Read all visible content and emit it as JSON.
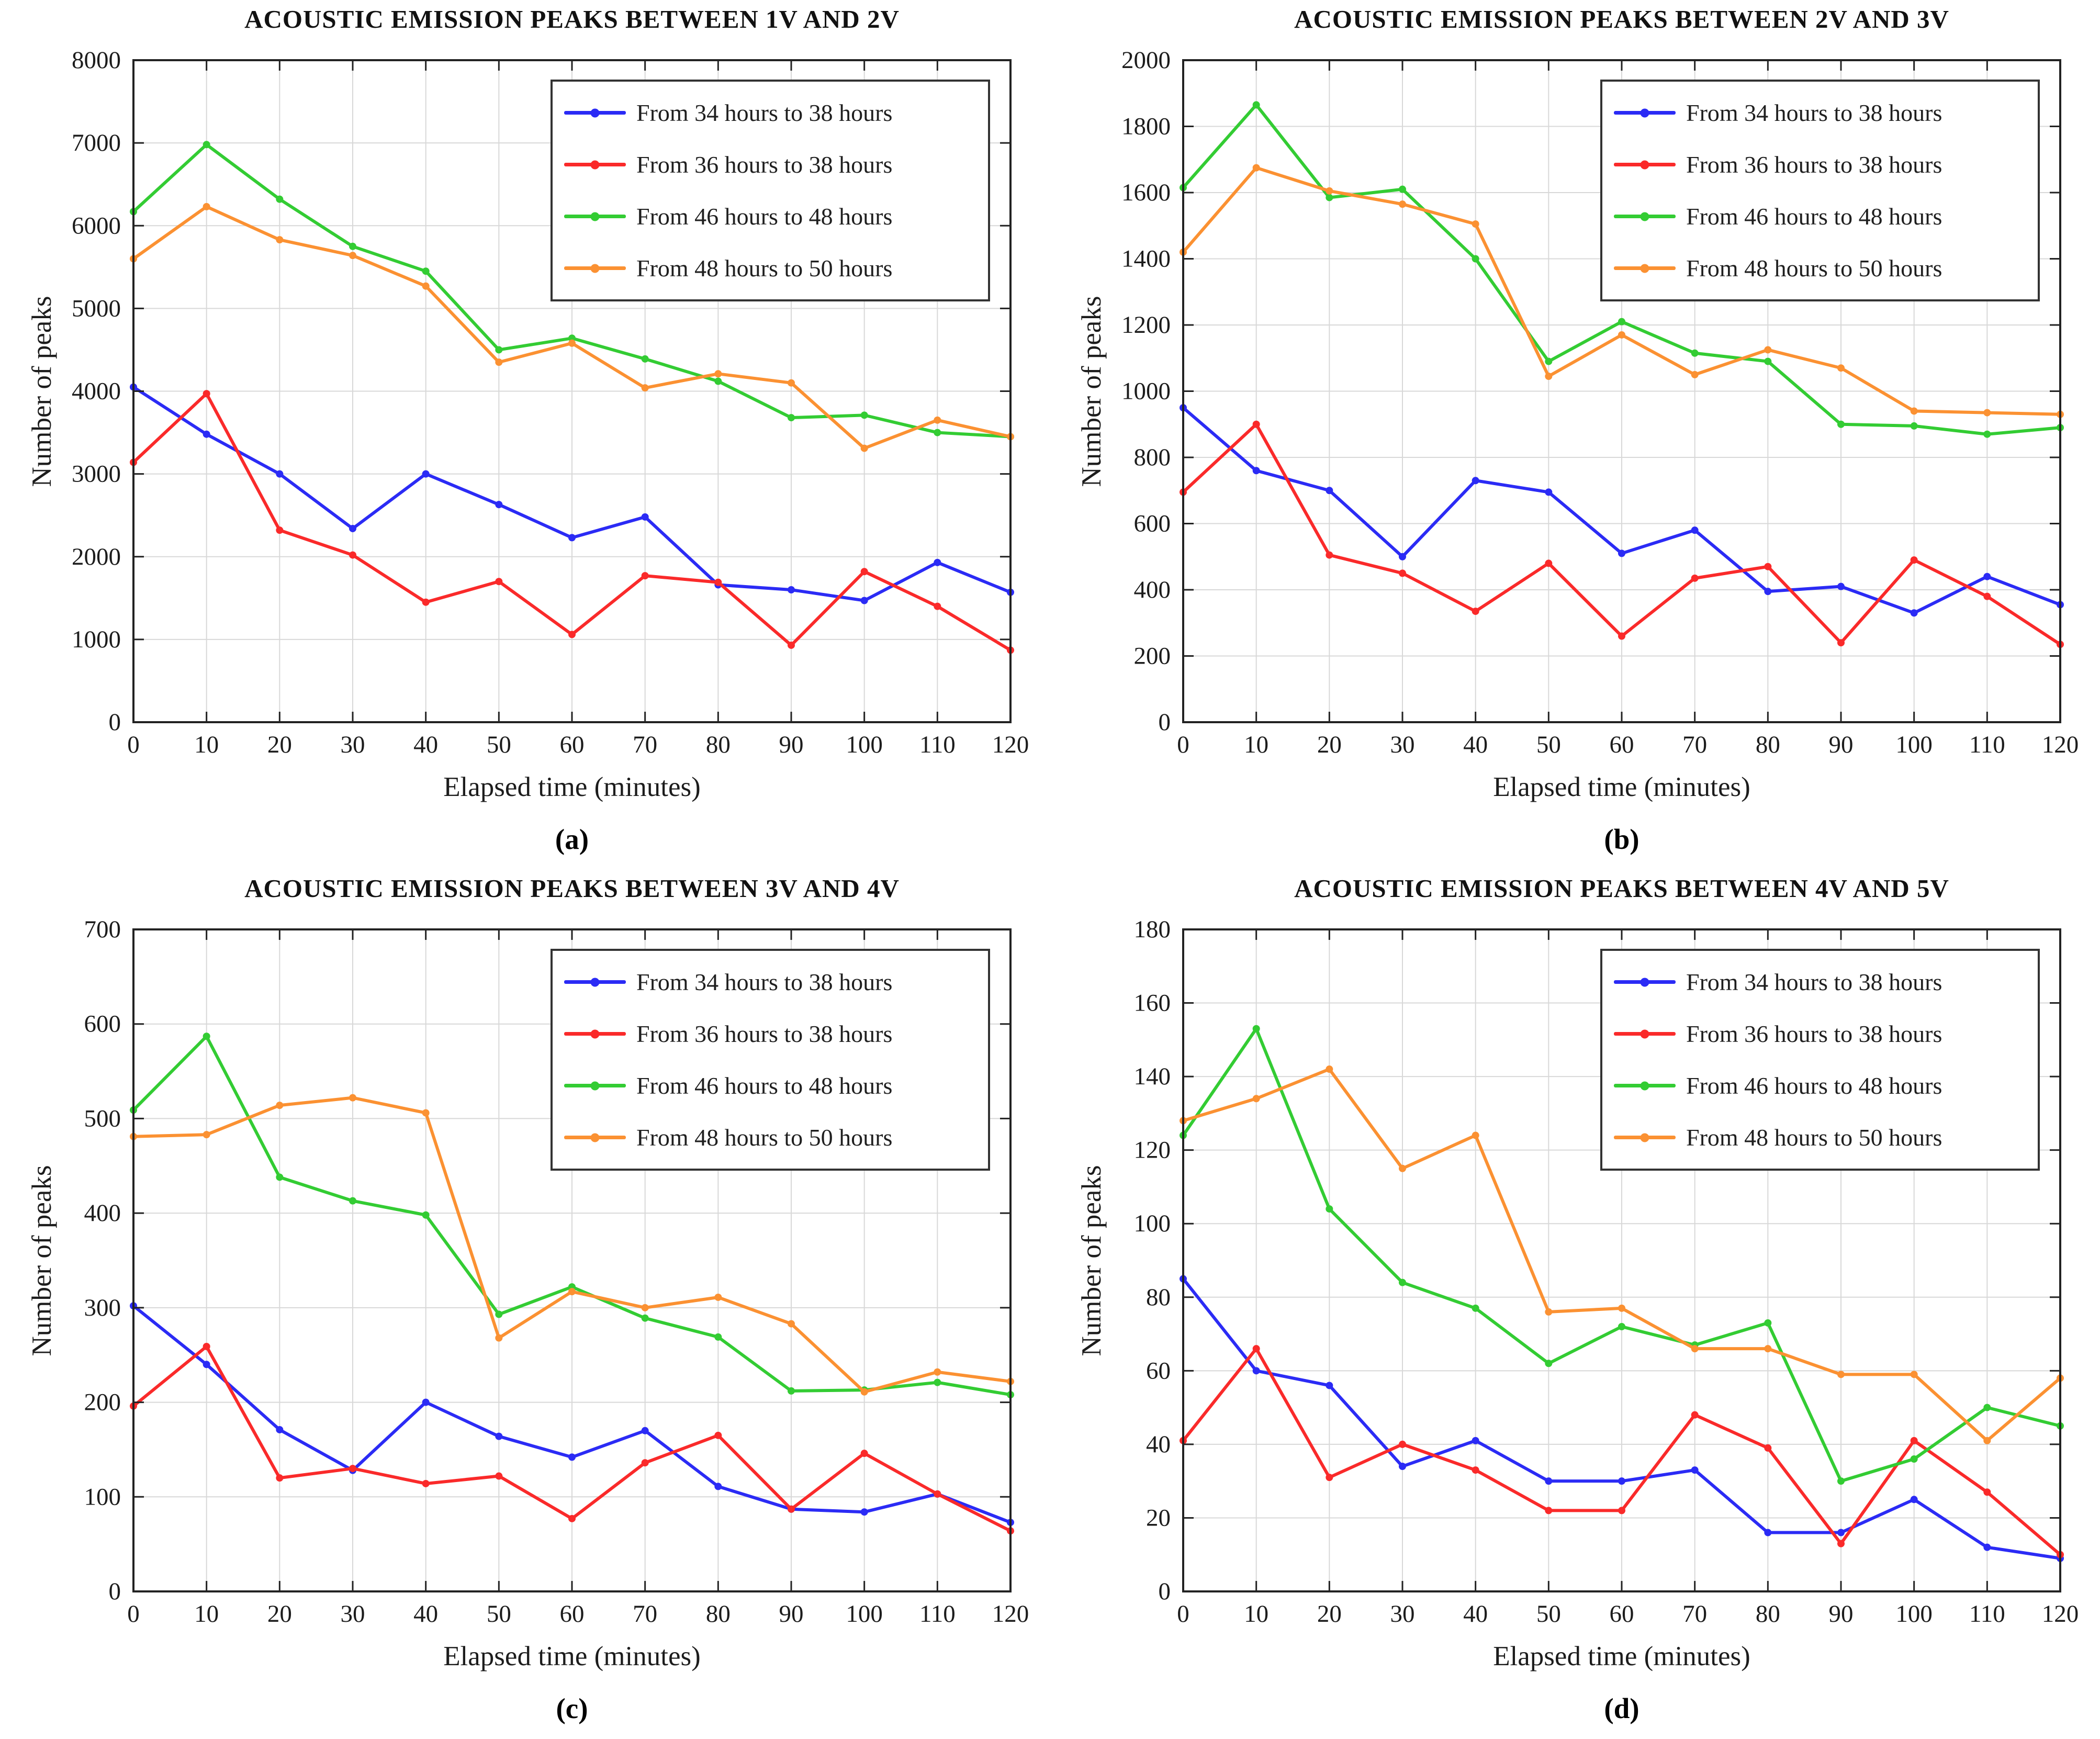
{
  "figure": {
    "background": "#ffffff",
    "grid_color": "#d8d8d8",
    "axis_color": "#222222",
    "text_color": "#1c1c1c"
  },
  "chart_data": [
    {
      "type": "line",
      "title": "ACOUSTIC EMISSION PEAKS BETWEEN 1V AND 2V",
      "xlabel": "Elapsed time (minutes)",
      "ylabel": "Number of peaks",
      "caption": "(a)",
      "grid": true,
      "legend_position": "top-right",
      "x": [
        0,
        10,
        20,
        30,
        40,
        50,
        60,
        70,
        80,
        90,
        100,
        110,
        120
      ],
      "xticks": [
        0,
        10,
        20,
        30,
        40,
        50,
        60,
        70,
        80,
        90,
        100,
        110,
        120
      ],
      "xlim": [
        0,
        120
      ],
      "ylim": [
        0,
        8000
      ],
      "yticks": [
        0,
        1000,
        2000,
        3000,
        4000,
        5000,
        6000,
        7000,
        8000
      ],
      "series": [
        {
          "name": "From 34 hours to 38 hours",
          "color": "#2b2bf5",
          "values": [
            4050,
            3480,
            3000,
            2340,
            3000,
            2630,
            2230,
            2480,
            1660,
            1600,
            1470,
            1930,
            1570
          ]
        },
        {
          "name": "From 36 hours to 38 hours",
          "color": "#fa2a2a",
          "values": [
            3140,
            3970,
            2320,
            2020,
            1450,
            1700,
            1060,
            1770,
            1690,
            930,
            1820,
            1400,
            870
          ]
        },
        {
          "name": "From 46 hours to 48 hours",
          "color": "#33cc33",
          "values": [
            6170,
            6980,
            6320,
            5750,
            5450,
            4500,
            4640,
            4390,
            4120,
            3680,
            3710,
            3500,
            3450
          ]
        },
        {
          "name": "From 48 hours to 50 hours",
          "color": "#fb9132",
          "values": [
            5600,
            6230,
            5830,
            5640,
            5270,
            4350,
            4580,
            4040,
            4210,
            4100,
            3310,
            3650,
            3450
          ]
        }
      ]
    },
    {
      "type": "line",
      "title": "ACOUSTIC EMISSION PEAKS BETWEEN 2V AND 3V",
      "xlabel": "Elapsed time (minutes)",
      "ylabel": "Number of peaks",
      "caption": "(b)",
      "grid": true,
      "legend_position": "top-right",
      "x": [
        0,
        10,
        20,
        30,
        40,
        50,
        60,
        70,
        80,
        90,
        100,
        110,
        120
      ],
      "xticks": [
        0,
        10,
        20,
        30,
        40,
        50,
        60,
        70,
        80,
        90,
        100,
        110,
        120
      ],
      "xlim": [
        0,
        120
      ],
      "ylim": [
        0,
        2000
      ],
      "yticks": [
        0,
        200,
        400,
        600,
        800,
        1000,
        1200,
        1400,
        1600,
        1800,
        2000
      ],
      "series": [
        {
          "name": "From 34 hours to 38 hours",
          "color": "#2b2bf5",
          "values": [
            950,
            760,
            700,
            500,
            730,
            695,
            510,
            580,
            395,
            410,
            330,
            440,
            355
          ]
        },
        {
          "name": "From 36 hours to 38 hours",
          "color": "#fa2a2a",
          "values": [
            695,
            900,
            505,
            450,
            335,
            480,
            260,
            435,
            470,
            240,
            490,
            380,
            235
          ]
        },
        {
          "name": "From 46 hours to 48 hours",
          "color": "#33cc33",
          "values": [
            1615,
            1865,
            1585,
            1610,
            1400,
            1090,
            1210,
            1115,
            1090,
            900,
            895,
            870,
            890
          ]
        },
        {
          "name": "From 48 hours to 50 hours",
          "color": "#fb9132",
          "values": [
            1420,
            1675,
            1605,
            1565,
            1505,
            1045,
            1170,
            1050,
            1125,
            1070,
            940,
            935,
            930
          ]
        }
      ]
    },
    {
      "type": "line",
      "title": "ACOUSTIC EMISSION PEAKS BETWEEN 3V AND 4V",
      "xlabel": "Elapsed time (minutes)",
      "ylabel": "Number of peaks",
      "caption": "(c)",
      "grid": true,
      "legend_position": "top-right",
      "x": [
        0,
        10,
        20,
        30,
        40,
        50,
        60,
        70,
        80,
        90,
        100,
        110,
        120
      ],
      "xticks": [
        0,
        10,
        20,
        30,
        40,
        50,
        60,
        70,
        80,
        90,
        100,
        110,
        120
      ],
      "xlim": [
        0,
        120
      ],
      "ylim": [
        0,
        700
      ],
      "yticks": [
        0,
        100,
        200,
        300,
        400,
        500,
        600,
        700
      ],
      "series": [
        {
          "name": "From 34 hours to 38 hours",
          "color": "#2b2bf5",
          "values": [
            302,
            240,
            171,
            128,
            200,
            164,
            142,
            170,
            111,
            87,
            84,
            103,
            73
          ]
        },
        {
          "name": "From 36 hours to 38 hours",
          "color": "#fa2a2a",
          "values": [
            196,
            259,
            120,
            130,
            114,
            122,
            77,
            136,
            165,
            87,
            146,
            103,
            64
          ]
        },
        {
          "name": "From 46 hours to 48 hours",
          "color": "#33cc33",
          "values": [
            509,
            587,
            438,
            413,
            398,
            293,
            322,
            289,
            269,
            212,
            213,
            221,
            208
          ]
        },
        {
          "name": "From 48 hours to 50 hours",
          "color": "#fb9132",
          "values": [
            481,
            483,
            514,
            522,
            506,
            268,
            317,
            300,
            311,
            283,
            211,
            232,
            222
          ]
        }
      ]
    },
    {
      "type": "line",
      "title": "ACOUSTIC EMISSION PEAKS BETWEEN 4V AND 5V",
      "xlabel": "Elapsed time (minutes)",
      "ylabel": "Number of peaks",
      "caption": "(d)",
      "grid": true,
      "legend_position": "top-right",
      "x": [
        0,
        10,
        20,
        30,
        40,
        50,
        60,
        70,
        80,
        90,
        100,
        110,
        120
      ],
      "xticks": [
        0,
        10,
        20,
        30,
        40,
        50,
        60,
        70,
        80,
        90,
        100,
        110,
        120
      ],
      "xlim": [
        0,
        120
      ],
      "ylim": [
        0,
        180
      ],
      "yticks": [
        0,
        20,
        40,
        60,
        80,
        100,
        120,
        140,
        160,
        180
      ],
      "series": [
        {
          "name": "From 34 hours to 38 hours",
          "color": "#2b2bf5",
          "values": [
            85,
            60,
            56,
            34,
            41,
            30,
            30,
            33,
            16,
            16,
            25,
            12,
            9
          ]
        },
        {
          "name": "From 36 hours to 38 hours",
          "color": "#fa2a2a",
          "values": [
            41,
            66,
            31,
            40,
            33,
            22,
            22,
            48,
            39,
            13,
            41,
            27,
            10
          ]
        },
        {
          "name": "From 46 hours to 48 hours",
          "color": "#33cc33",
          "values": [
            124,
            153,
            104,
            84,
            77,
            62,
            72,
            67,
            73,
            30,
            36,
            50,
            45
          ]
        },
        {
          "name": "From 48 hours to 50 hours",
          "color": "#fb9132",
          "values": [
            128,
            134,
            142,
            115,
            124,
            76,
            77,
            66,
            66,
            59,
            59,
            41,
            58
          ]
        }
      ]
    }
  ]
}
